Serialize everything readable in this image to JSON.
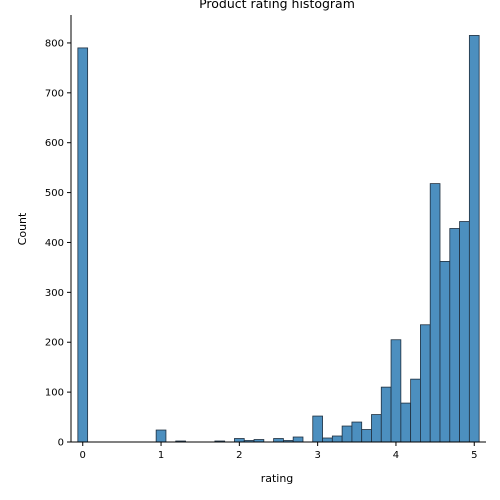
{
  "chart_data": {
    "type": "bar",
    "title": "Product rating histogram",
    "xlabel": "rating",
    "ylabel": "Count",
    "xlim": [
      -0.15,
      5.15
    ],
    "ylim": [
      0,
      856
    ],
    "xticks": [
      0,
      1,
      2,
      3,
      4,
      5
    ],
    "yticks": [
      0,
      100,
      200,
      300,
      400,
      500,
      600,
      700,
      800
    ],
    "bin_width": 0.125,
    "bar_color": "#4c8fbf",
    "edge_color": "#1f2f3f",
    "grid": false,
    "bins": [
      {
        "x": 0.0,
        "value": 790
      },
      {
        "x": 1.0,
        "value": 24
      },
      {
        "x": 1.25,
        "value": 2
      },
      {
        "x": 1.75,
        "value": 2
      },
      {
        "x": 2.0,
        "value": 7
      },
      {
        "x": 2.125,
        "value": 3
      },
      {
        "x": 2.25,
        "value": 5
      },
      {
        "x": 2.5,
        "value": 7
      },
      {
        "x": 2.625,
        "value": 3
      },
      {
        "x": 2.75,
        "value": 10
      },
      {
        "x": 3.0,
        "value": 52
      },
      {
        "x": 3.125,
        "value": 8
      },
      {
        "x": 3.25,
        "value": 12
      },
      {
        "x": 3.375,
        "value": 32
      },
      {
        "x": 3.5,
        "value": 40
      },
      {
        "x": 3.625,
        "value": 25
      },
      {
        "x": 3.75,
        "value": 55
      },
      {
        "x": 3.875,
        "value": 110
      },
      {
        "x": 4.0,
        "value": 205
      },
      {
        "x": 4.125,
        "value": 78
      },
      {
        "x": 4.25,
        "value": 126
      },
      {
        "x": 4.375,
        "value": 235
      },
      {
        "x": 4.5,
        "value": 518
      },
      {
        "x": 4.625,
        "value": 362
      },
      {
        "x": 4.75,
        "value": 428
      },
      {
        "x": 4.875,
        "value": 442
      },
      {
        "x": 5.0,
        "value": 815
      }
    ]
  }
}
